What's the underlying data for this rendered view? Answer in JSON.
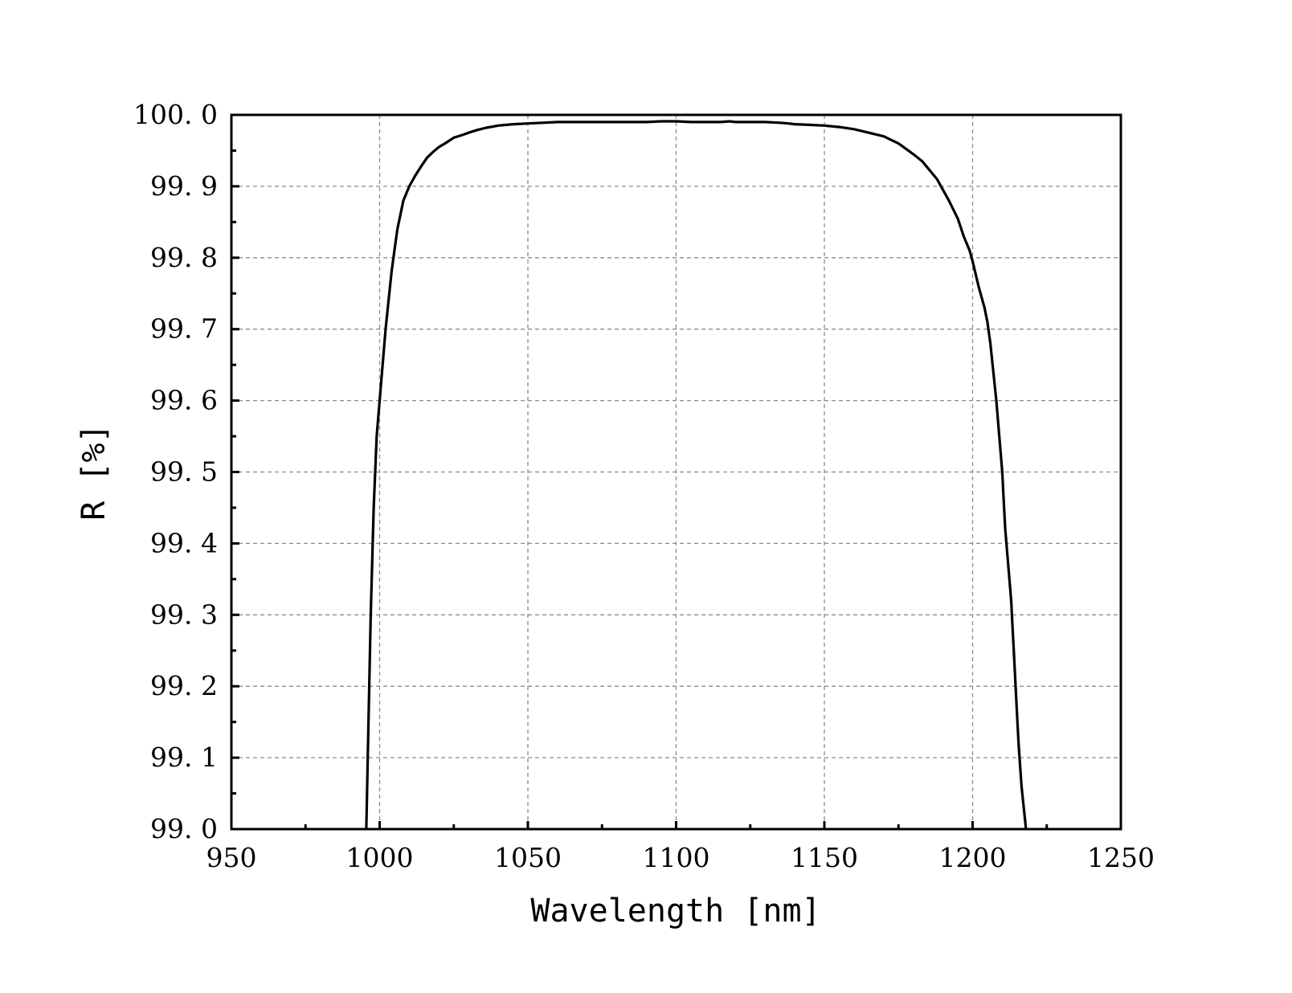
{
  "chart_data": {
    "type": "line",
    "title": "",
    "xlabel": "Wavelength [nm]",
    "ylabel": "R [%]",
    "xlim": [
      950,
      1250
    ],
    "ylim": [
      99.0,
      100.0
    ],
    "x_ticks": [
      950,
      1000,
      1050,
      1100,
      1150,
      1200,
      1250
    ],
    "x_tick_labels": [
      "950",
      "1000",
      "1050",
      "1100",
      "1150",
      "1200",
      "1250"
    ],
    "y_ticks": [
      99.0,
      99.1,
      99.2,
      99.3,
      99.4,
      99.5,
      99.6,
      99.7,
      99.8,
      99.9,
      100.0
    ],
    "y_tick_labels": [
      "99. 0",
      "99. 1",
      "99. 2",
      "99. 3",
      "99. 4",
      "99. 5",
      "99. 6",
      "99. 7",
      "99. 8",
      "99. 9",
      "100. 0"
    ],
    "grid": true,
    "legend": "none",
    "series": [
      {
        "color": "#000000",
        "x": [
          995.5,
          996,
          997,
          998,
          999,
          1000,
          1001,
          1002,
          1003,
          1004,
          1005,
          1006,
          1007,
          1008,
          1010,
          1012,
          1014,
          1016,
          1018,
          1020,
          1022,
          1025,
          1028,
          1030,
          1033,
          1036,
          1040,
          1045,
          1050,
          1055,
          1060,
          1070,
          1080,
          1090,
          1095,
          1100,
          1105,
          1110,
          1115,
          1118,
          1120,
          1125,
          1130,
          1135,
          1138,
          1140,
          1145,
          1150,
          1155,
          1160,
          1165,
          1170,
          1175,
          1180,
          1183,
          1185,
          1188,
          1190,
          1192,
          1195,
          1197,
          1199,
          1200,
          1202,
          1204,
          1205,
          1206,
          1207,
          1208,
          1209,
          1210,
          1210.5,
          1211,
          1212,
          1213,
          1213.5,
          1214,
          1214.5,
          1215,
          1215.5,
          1216,
          1216.5,
          1217,
          1217.5,
          1218
        ],
        "y": [
          99.0,
          99.1,
          99.3,
          99.45,
          99.55,
          99.6,
          99.65,
          99.7,
          99.74,
          99.78,
          99.81,
          99.84,
          99.86,
          99.88,
          99.9,
          99.915,
          99.928,
          99.94,
          99.948,
          99.955,
          99.96,
          99.968,
          99.972,
          99.975,
          99.979,
          99.982,
          99.985,
          99.987,
          99.988,
          99.989,
          99.99,
          99.99,
          99.99,
          99.99,
          99.991,
          99.991,
          99.99,
          99.99,
          99.99,
          99.991,
          99.99,
          99.99,
          99.99,
          99.989,
          99.988,
          99.987,
          99.986,
          99.985,
          99.983,
          99.98,
          99.975,
          99.97,
          99.96,
          99.945,
          99.935,
          99.925,
          99.91,
          99.895,
          99.88,
          99.855,
          99.83,
          99.81,
          99.795,
          99.76,
          99.73,
          99.71,
          99.68,
          99.64,
          99.6,
          99.55,
          99.5,
          99.46,
          99.42,
          99.37,
          99.32,
          99.28,
          99.24,
          99.2,
          99.16,
          99.12,
          99.09,
          99.06,
          99.04,
          99.02,
          99.0
        ]
      }
    ]
  }
}
